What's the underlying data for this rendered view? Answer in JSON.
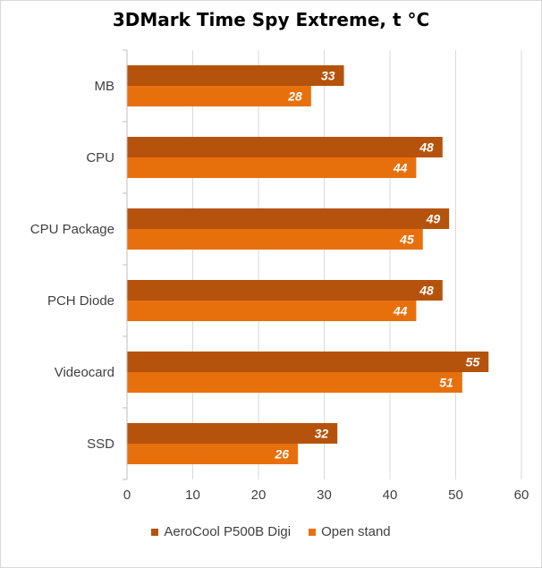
{
  "chart_data": {
    "type": "bar",
    "orientation": "horizontal",
    "title": "3DMark Time Spy Extreme, t °C",
    "categories": [
      "MB",
      "CPU",
      "CPU Package",
      "PCH Diode",
      "Videocard",
      "SSD"
    ],
    "series": [
      {
        "name": "AeroCool P500B Digi",
        "color": "#b5530d",
        "values": [
          33,
          48,
          49,
          48,
          55,
          32
        ]
      },
      {
        "name": "Open stand",
        "color": "#e8700c",
        "values": [
          28,
          44,
          45,
          44,
          51,
          26
        ]
      }
    ],
    "xlim": [
      0,
      60
    ],
    "xticks": [
      0,
      10,
      20,
      30,
      40,
      50,
      60
    ],
    "grid": true,
    "legend_position": "bottom"
  }
}
